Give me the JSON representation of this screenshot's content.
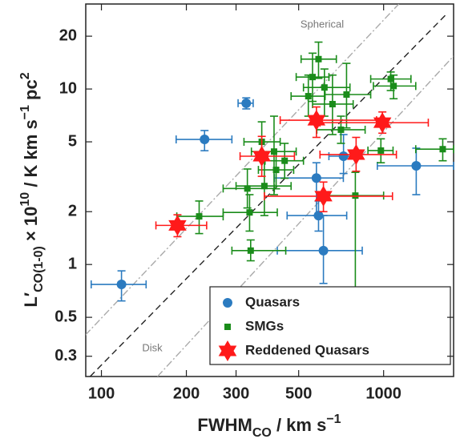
{
  "chart_data": {
    "type": "scatter",
    "x_label": [
      {
        "text": "FWHM",
        "shift": "none"
      },
      {
        "text": "CO",
        "shift": "sub"
      },
      {
        "text": " / km s",
        "shift": "none"
      },
      {
        "text": "−1",
        "shift": "sup"
      }
    ],
    "y_label": [
      {
        "text": "L′",
        "shift": "none"
      },
      {
        "text": "CO(1-0)",
        "shift": "sub"
      },
      {
        "text": " × 10",
        "shift": "none"
      },
      {
        "text": "10",
        "shift": "sup"
      },
      {
        "text": " / K km s",
        "shift": "none"
      },
      {
        "text": "−1",
        "shift": "sup"
      },
      {
        "text": " pc",
        "shift": "none"
      },
      {
        "text": "2",
        "shift": "sup"
      }
    ],
    "xscale": "log",
    "yscale": "log",
    "xlim": [
      88,
      1770
    ],
    "ylim": [
      0.23,
      30.5
    ],
    "xticks": [
      100,
      200,
      300,
      500,
      1000
    ],
    "yticks": [
      0.3,
      0.5,
      1,
      2,
      5,
      10,
      20
    ],
    "legend": "lower right",
    "reference_lines": [
      {
        "x": [
          87.7,
          1132
        ],
        "y": [
          0.396,
          30.5
        ],
        "style": "dashdot",
        "color": "#aaaaaa"
      },
      {
        "x": [
          91.2,
          1666
        ],
        "y": [
          0.23,
          26.6
        ],
        "style": "dashed",
        "color": "#222222"
      },
      {
        "x": [
          158,
          1770
        ],
        "y": [
          0.23,
          15.4
        ],
        "style": "dashdot",
        "color": "#aaaaaa"
      }
    ],
    "annotations": [
      "Spherical",
      "Disk"
    ],
    "series": [
      {
        "name": "Quasars",
        "color": "#2b7bc0",
        "marker": "circle",
        "x": [
          117.8,
          232,
          326,
          578,
          588,
          612,
          721,
          1305
        ],
        "values": [
          0.77,
          5.16,
          8.3,
          3.11,
          1.9,
          1.2,
          4.14,
          3.65
        ],
        "x_lo": [
          92,
          184,
          305,
          410,
          455,
          420,
          640,
          950
        ],
        "x_hi": [
          144,
          290,
          345,
          720,
          740,
          840,
          800,
          1770
        ],
        "y_lo": [
          0.62,
          4.45,
          7.7,
          1.9,
          1.55,
          0.78,
          3.3,
          2.5
        ],
        "y_hi": [
          0.92,
          5.8,
          8.9,
          3.8,
          2.3,
          1.9,
          5.5,
          4.6
        ]
      },
      {
        "name": "SMGs",
        "color": "#1a8c1a",
        "marker": "square",
        "x": [
          222,
          329,
          335,
          338,
          370,
          378,
          409,
          416,
          446,
          541,
          560,
          588,
          617,
          659,
          706,
          739,
          794,
          978,
          1060,
          1085,
          1620
        ],
        "values": [
          1.88,
          2.71,
          1.98,
          1.2,
          5.0,
          2.8,
          4.4,
          3.46,
          3.9,
          9.1,
          11.7,
          14.8,
          10.2,
          8.2,
          5.86,
          9.3,
          2.47,
          4.46,
          11.4,
          10.4,
          4.54
        ],
        "x_lo": [
          185,
          270,
          270,
          290,
          320,
          300,
          340,
          360,
          380,
          470,
          490,
          510,
          520,
          560,
          580,
          620,
          620,
          880,
          900,
          920,
          1300
        ],
        "x_hi": [
          270,
          410,
          420,
          450,
          430,
          470,
          490,
          480,
          520,
          620,
          640,
          680,
          760,
          780,
          860,
          900,
          1000,
          1080,
          1250,
          1300,
          1770
        ],
        "y_lo": [
          1.5,
          2.1,
          1.55,
          1.05,
          3.9,
          1.9,
          2.5,
          2.7,
          3.1,
          7.0,
          8.5,
          11.5,
          7.0,
          5.5,
          4.9,
          6.0,
          0.73,
          3.8,
          9.8,
          8.8,
          3.9
        ],
        "y_hi": [
          2.3,
          3.5,
          2.5,
          1.38,
          6.5,
          4.1,
          7.0,
          4.4,
          4.9,
          12,
          16,
          18.5,
          13,
          12,
          7.0,
          14,
          3.35,
          5.2,
          12.5,
          12,
          5.2
        ]
      },
      {
        "name": "Reddened Quasars",
        "color": "#ff1a1a",
        "marker": "star",
        "x": [
          186,
          370,
          578,
          612,
          799,
          990
        ],
        "values": [
          1.67,
          4.14,
          6.64,
          2.45,
          4.23,
          6.43
        ],
        "x_lo": [
          156,
          310,
          430,
          378,
          595,
          595
        ],
        "x_hi": [
          236,
          483,
          944,
          1075,
          1110,
          1440
        ],
        "y_lo": [
          1.44,
          3.18,
          5.3,
          2.0,
          3.4,
          5.6
        ],
        "y_hi": [
          1.92,
          5.37,
          7.9,
          2.95,
          5.3,
          7.4
        ]
      }
    ]
  }
}
